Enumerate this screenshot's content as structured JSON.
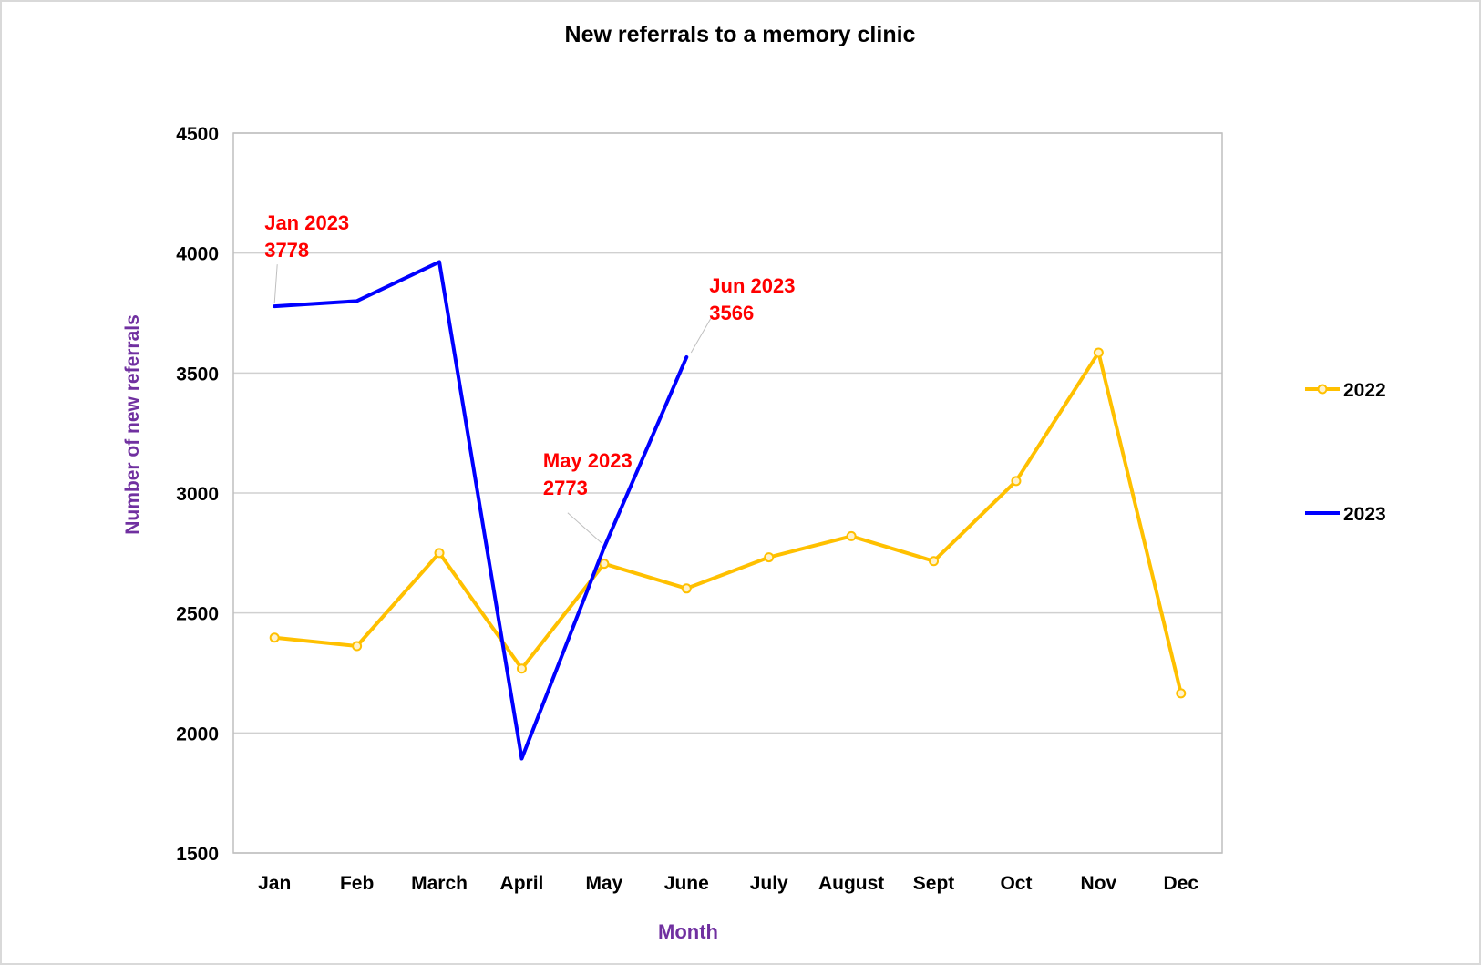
{
  "chart_data": {
    "type": "line",
    "title": "New referrals to a memory clinic",
    "xlabel": "Month",
    "ylabel": "Number of new referrals",
    "categories": [
      "Jan",
      "Feb",
      "March",
      "April",
      "May",
      "June",
      "July",
      "August",
      "Sept",
      "Oct",
      "Nov",
      "Dec"
    ],
    "ylim": [
      1500,
      4500
    ],
    "yticks": [
      "1500",
      "2000",
      "2500",
      "3000",
      "3500",
      "4000",
      "4500"
    ],
    "grid": true,
    "legend_position": "right",
    "series": [
      {
        "name": "2022",
        "color": "#FFC000",
        "markers": true,
        "values": [
          2397,
          2362,
          2750,
          2268,
          2705,
          2602,
          2732,
          2820,
          2716,
          3050,
          3585,
          2165
        ]
      },
      {
        "name": "2023",
        "color": "#0000FF",
        "markers": false,
        "values": [
          3778,
          3800,
          3963,
          1893,
          2773,
          3566,
          null,
          null,
          null,
          null,
          null,
          null
        ]
      }
    ],
    "annotations": [
      {
        "series": "2023",
        "index": 0,
        "lines": [
          "Jan 2023",
          "3778"
        ]
      },
      {
        "series": "2023",
        "index": 4,
        "lines": [
          "May 2023",
          "2773"
        ]
      },
      {
        "series": "2023",
        "index": 5,
        "lines": [
          "Jun 2023",
          "3566"
        ]
      }
    ],
    "annotation_color": "#FF0000",
    "axis_title_color": "#7030A0"
  }
}
